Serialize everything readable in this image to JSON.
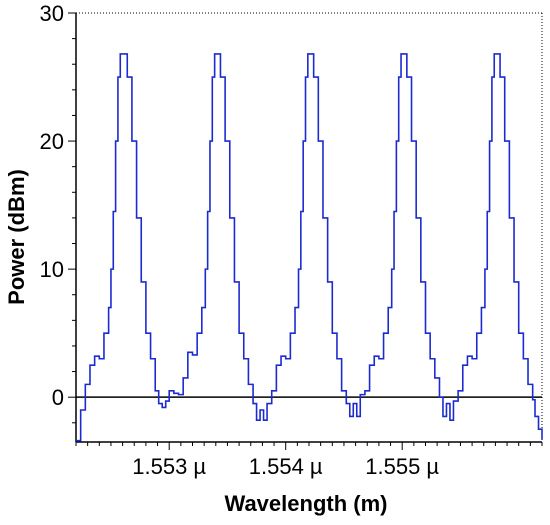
{
  "chart_data": {
    "type": "line",
    "title": "",
    "xlabel": "Wavelength (m)",
    "ylabel": "Power (dBm)",
    "x_tick_labels": [
      "1.553 µ",
      "1.554 µ",
      "1.555 µ"
    ],
    "x_ticks": [
      1.553,
      1.554,
      1.555
    ],
    "y_tick_labels": [
      "0",
      "10",
      "20",
      "30"
    ],
    "y_ticks": [
      0,
      10,
      20,
      30
    ],
    "xlim": [
      1.5522,
      1.5562
    ],
    "ylim": [
      -3.5,
      30
    ],
    "grid": false,
    "zero_line": true,
    "line_color": "#1c2bd0",
    "x_unit_note": "x values in µm",
    "series": [
      {
        "x": [
          1.5522,
          1.55224,
          1.55228,
          1.55232,
          1.55236,
          1.5524,
          1.55244,
          1.55248,
          1.5525,
          1.55252,
          1.55254,
          1.55256,
          1.55258,
          1.5526,
          1.55264,
          1.55268,
          1.55272,
          1.55276,
          1.5528,
          1.55284,
          1.55288,
          1.55291,
          1.55294,
          1.55297,
          1.553,
          1.55304,
          1.55308,
          1.55312,
          1.55316,
          1.5532,
          1.55324,
          1.55328,
          1.55331,
          1.55333,
          1.55335,
          1.55337,
          1.55339,
          1.55341,
          1.55344,
          1.55348,
          1.55352,
          1.55356,
          1.5536,
          1.55364,
          1.55368,
          1.55372,
          1.55375,
          1.55378,
          1.55381,
          1.55384,
          1.55388,
          1.55392,
          1.55396,
          1.554,
          1.55404,
          1.55408,
          1.55411,
          1.55413,
          1.55415,
          1.55417,
          1.55419,
          1.55421,
          1.55424,
          1.55428,
          1.55432,
          1.55436,
          1.5544,
          1.55444,
          1.55448,
          1.55452,
          1.55455,
          1.55458,
          1.55461,
          1.55464,
          1.55468,
          1.55472,
          1.55476,
          1.5548,
          1.55484,
          1.55488,
          1.55491,
          1.55493,
          1.55495,
          1.55497,
          1.55499,
          1.55501,
          1.55504,
          1.55508,
          1.55512,
          1.55516,
          1.5552,
          1.55524,
          1.55528,
          1.55532,
          1.55535,
          1.55538,
          1.55541,
          1.55544,
          1.55548,
          1.55552,
          1.55556,
          1.5556,
          1.55564,
          1.55568,
          1.55571,
          1.55573,
          1.55575,
          1.55577,
          1.55579,
          1.55581,
          1.55584,
          1.55588,
          1.55592,
          1.55596,
          1.556,
          1.55604,
          1.55608,
          1.55612,
          1.55614,
          1.55617,
          1.5562
        ],
        "y": [
          -3.4,
          -1.0,
          1.0,
          2.5,
          3.2,
          3.0,
          5.0,
          7.0,
          10.0,
          14.5,
          20.0,
          25.0,
          26.8,
          26.8,
          25.0,
          20.0,
          14.0,
          9.0,
          5.0,
          3.0,
          0.5,
          -0.5,
          -0.8,
          -0.3,
          0.5,
          0.3,
          0.2,
          1.5,
          3.5,
          3.3,
          5.0,
          7.0,
          10.0,
          14.5,
          20.0,
          25.0,
          26.8,
          26.8,
          25.0,
          20.0,
          14.0,
          9.0,
          5.0,
          3.0,
          1.0,
          -0.5,
          -1.8,
          -1.0,
          -1.8,
          -0.5,
          0.5,
          2.5,
          3.2,
          3.0,
          5.0,
          7.0,
          10.0,
          14.5,
          20.0,
          25.0,
          26.8,
          26.8,
          25.0,
          20.0,
          14.0,
          9.0,
          5.0,
          3.0,
          0.5,
          -0.5,
          -1.5,
          -0.5,
          -1.5,
          0.2,
          0.5,
          2.5,
          3.2,
          3.0,
          5.0,
          7.0,
          10.0,
          14.5,
          20.0,
          25.0,
          26.8,
          26.8,
          25.0,
          20.0,
          14.0,
          9.0,
          5.0,
          3.0,
          1.5,
          0.0,
          -1.5,
          -0.5,
          -1.8,
          -0.3,
          0.5,
          2.5,
          3.2,
          3.0,
          5.0,
          7.0,
          10.0,
          14.5,
          20.0,
          25.0,
          26.8,
          26.8,
          25.0,
          20.0,
          14.0,
          9.0,
          5.0,
          3.0,
          1.0,
          -0.2,
          -1.5,
          -2.5,
          -3.3
        ]
      }
    ]
  }
}
